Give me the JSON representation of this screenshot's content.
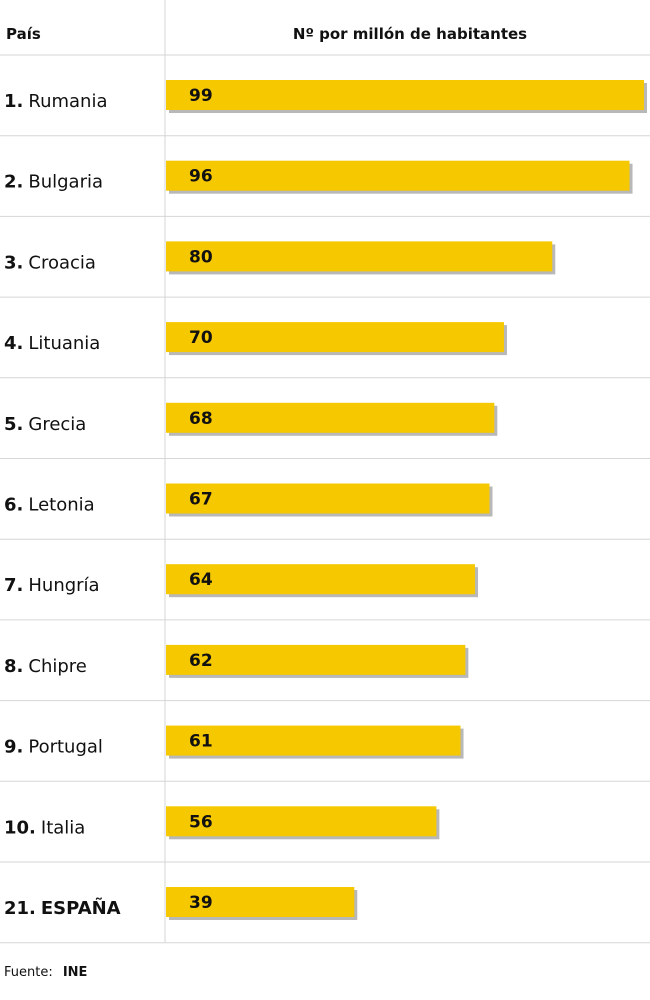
{
  "header": {
    "country_label": "País",
    "value_label": "Nº por millón de habitantes"
  },
  "rows": [
    {
      "rank": "1.",
      "country": "Rumania",
      "value_label": "99"
    },
    {
      "rank": "2.",
      "country": "Bulgaria",
      "value_label": "96"
    },
    {
      "rank": "3.",
      "country": "Croacia",
      "value_label": "80"
    },
    {
      "rank": "4.",
      "country": "Lituania",
      "value_label": "70"
    },
    {
      "rank": "5.",
      "country": "Grecia",
      "value_label": "68"
    },
    {
      "rank": "6.",
      "country": "Letonia",
      "value_label": "67"
    },
    {
      "rank": "7.",
      "country": "Hungría",
      "value_label": "64"
    },
    {
      "rank": "8.",
      "country": "Chipre",
      "value_label": "62"
    },
    {
      "rank": "9.",
      "country": "Portugal",
      "value_label": "61"
    },
    {
      "rank": "10.",
      "country": "Italia",
      "value_label": "56"
    },
    {
      "rank": "21.",
      "country": "ESPAÑA",
      "value_label": "39"
    }
  ],
  "footer": {
    "prefix": "Fuente:",
    "source": "INE"
  },
  "colors": {
    "bar": "#f5c800",
    "divider": "#d6d6d6",
    "text": "#111111"
  },
  "chart_data": {
    "type": "bar",
    "orientation": "horizontal",
    "categories": [
      "Rumania",
      "Bulgaria",
      "Croacia",
      "Lituania",
      "Grecia",
      "Letonia",
      "Hungría",
      "Chipre",
      "Portugal",
      "Italia",
      "ESPAÑA"
    ],
    "values": [
      99,
      96,
      80,
      70,
      68,
      67,
      64,
      62,
      61,
      56,
      39
    ],
    "title": "",
    "xlabel": "Nº por millón de habitantes",
    "ylabel": "País",
    "xlim": [
      0,
      99
    ],
    "grid": false,
    "legend": "none"
  }
}
